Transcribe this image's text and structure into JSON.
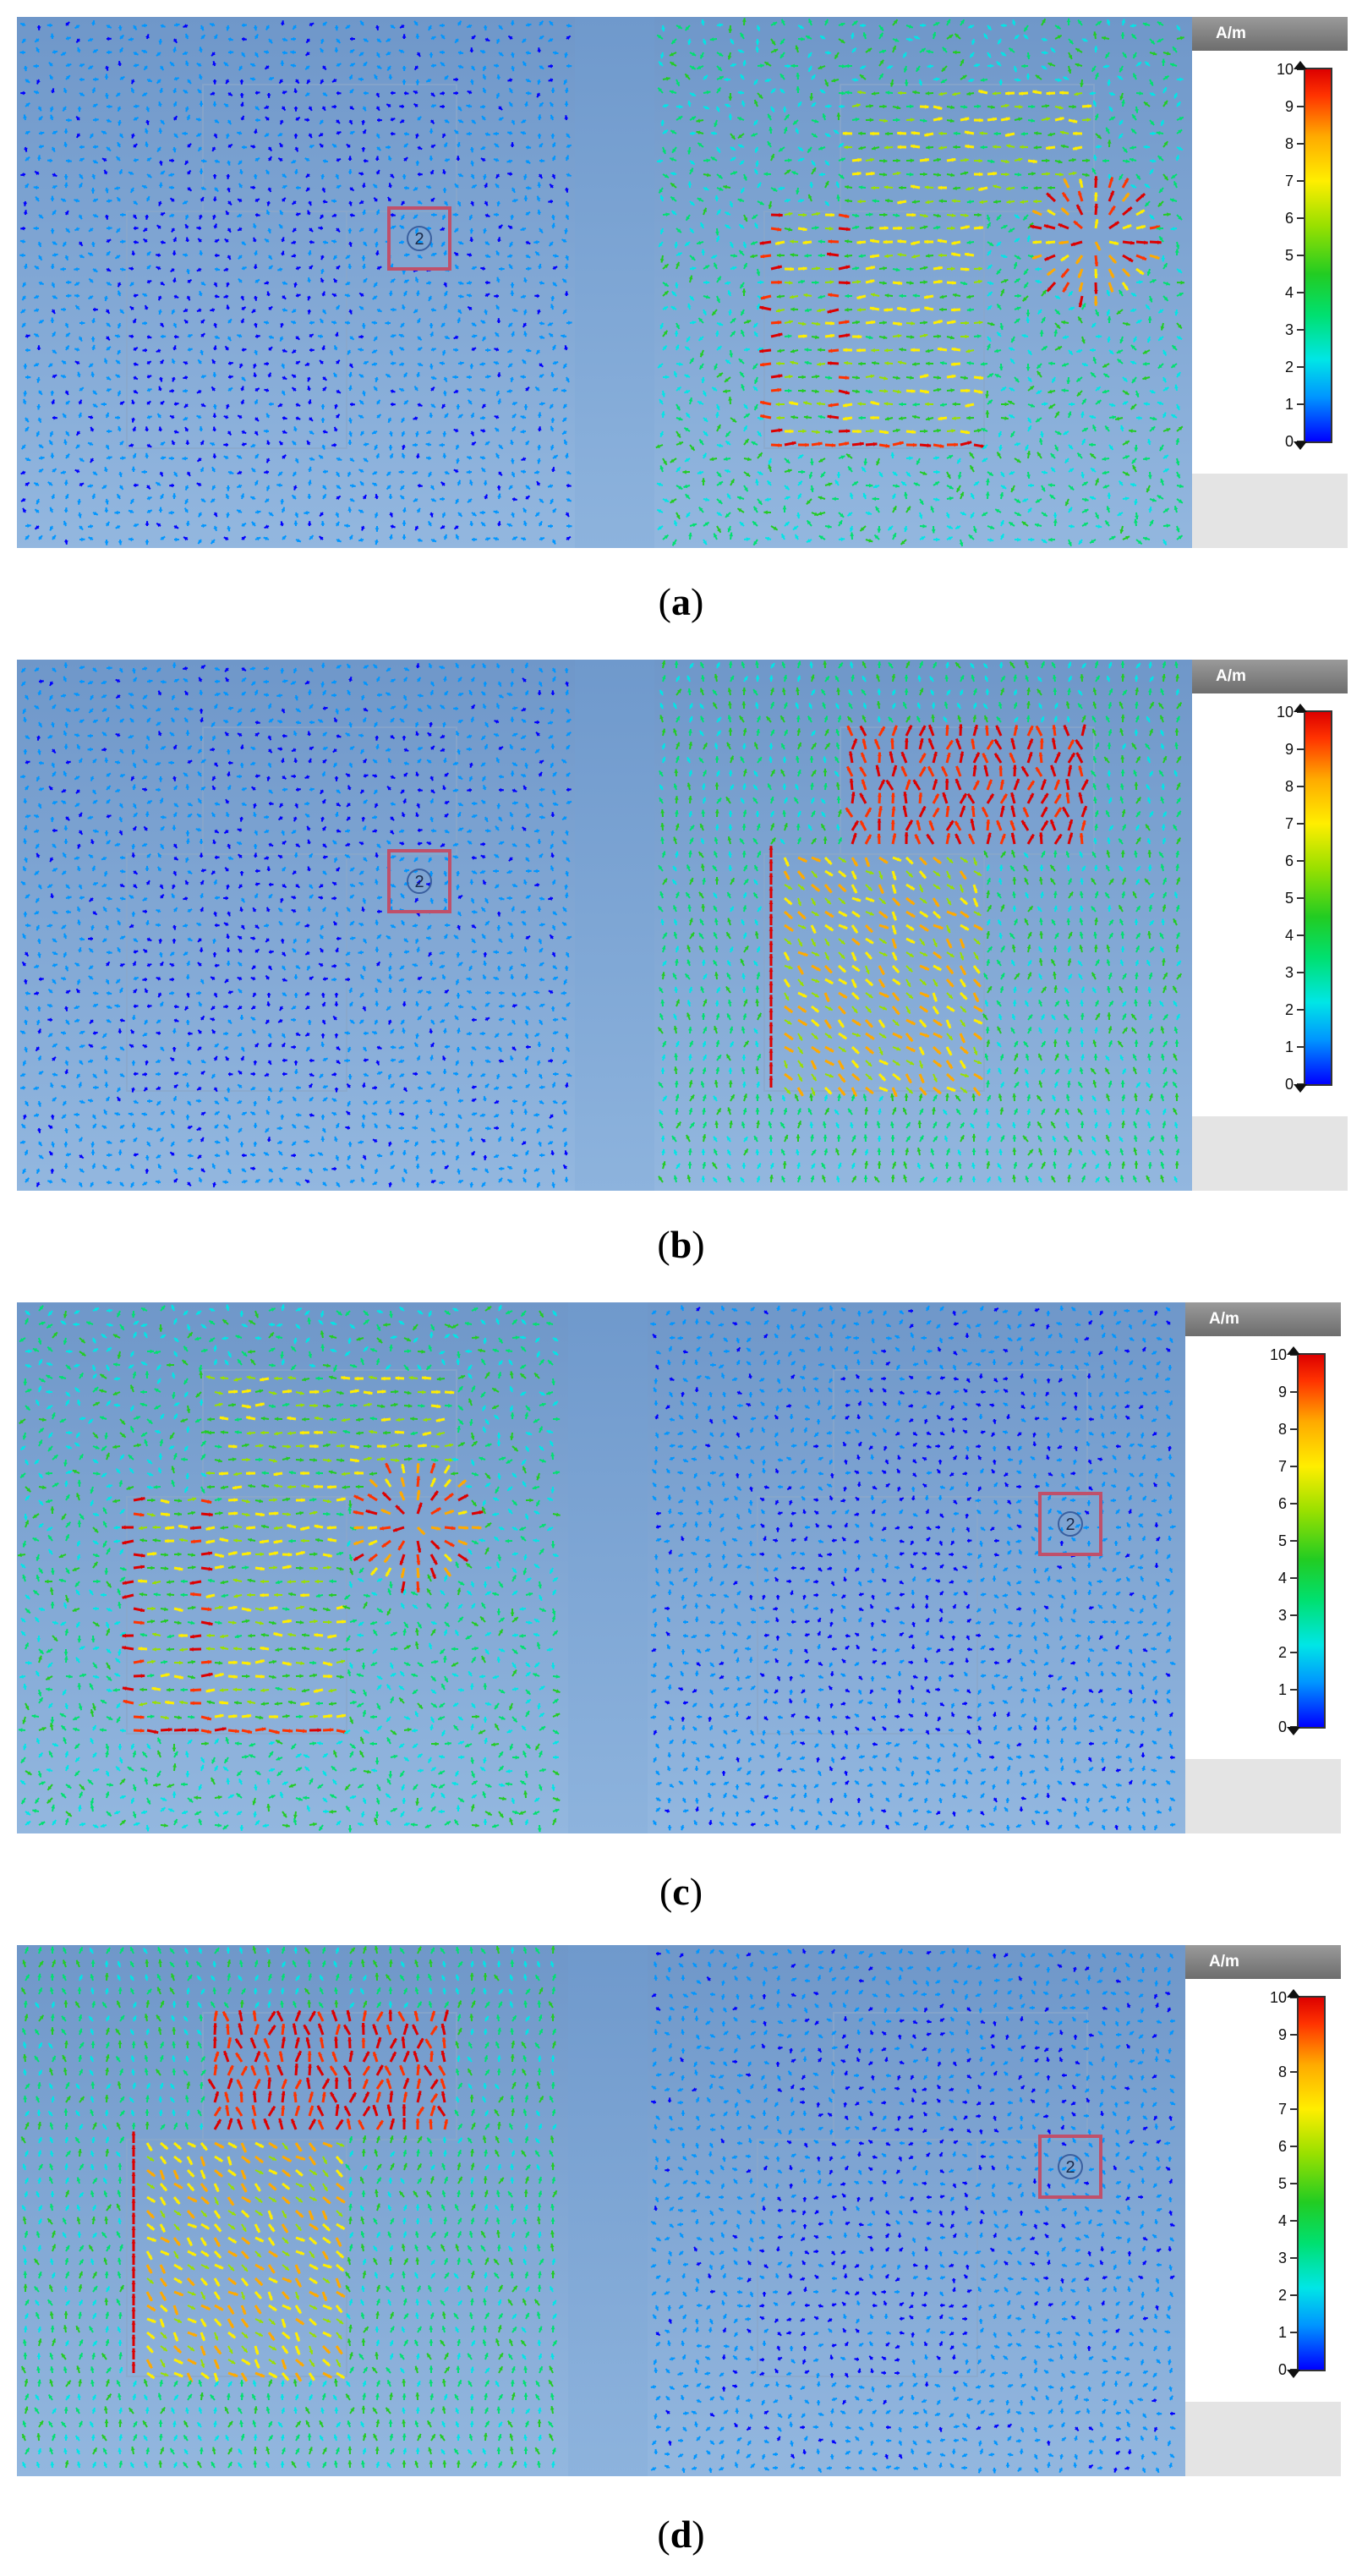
{
  "panels": [
    {
      "caption_open": "(",
      "caption_letter": "a",
      "caption_close": ")",
      "port_label": "2",
      "left_view": "weak",
      "right_view": "strong-port"
    },
    {
      "caption_open": "(",
      "caption_letter": "b",
      "caption_close": ")",
      "port_label": "2",
      "left_view": "weak",
      "right_view": "strong-patch"
    },
    {
      "caption_open": "(",
      "caption_letter": "c",
      "caption_close": ")",
      "port_label": "2",
      "left_view": "strong-port",
      "right_view": "weak"
    },
    {
      "caption_open": "(",
      "caption_letter": "d",
      "caption_close": ")",
      "port_label": "2",
      "left_view": "strong-patch",
      "right_view": "weak"
    }
  ],
  "legend": {
    "unit": "A/m",
    "ticks": [
      "10",
      "9",
      "8",
      "7",
      "6",
      "5",
      "4",
      "3",
      "2",
      "1",
      "0"
    ],
    "min": 0,
    "max": 10,
    "colors": [
      "#0000ff",
      "#0096ff",
      "#00e6e6",
      "#00e070",
      "#22cc22",
      "#99e000",
      "#ffee00",
      "#ffaa00",
      "#ff3300",
      "#dd0000"
    ]
  }
}
